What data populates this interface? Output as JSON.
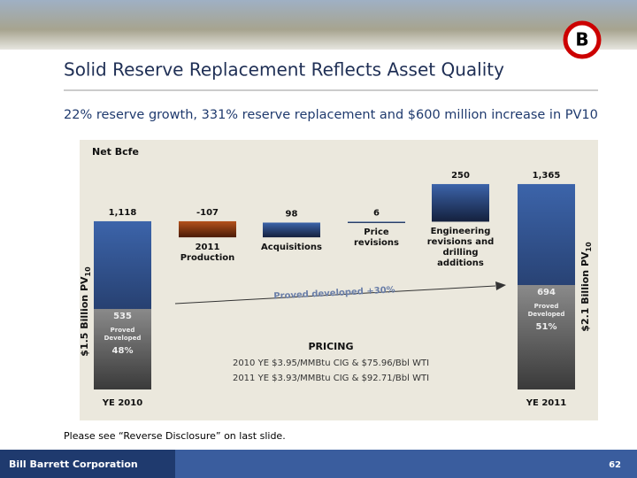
{
  "header": {
    "title": "Solid Reserve Replacement Reflects Asset Quality",
    "subtitle": "22% reserve growth, 331% reserve replacement and $600 million increase in PV10",
    "logo": "B"
  },
  "chart_data": {
    "type": "waterfall",
    "y_label": "Net Bcfe",
    "categories": [
      "YE 2010",
      "2011 Production",
      "Acquisitions",
      "Price revisions",
      "Engineering revisions and drilling additions",
      "YE 2011"
    ],
    "values": [
      1118,
      -107,
      98,
      6,
      250,
      1365
    ],
    "value_labels": [
      "1,118",
      "-107",
      "98",
      "6",
      "250",
      "1,365"
    ],
    "proved_developed": {
      "name": "Proved Developed",
      "values": [
        535,
        694
      ],
      "shares": [
        48,
        51
      ],
      "share_labels": [
        "48%",
        "51%"
      ]
    },
    "pv_left": {
      "text": "$1.5 Billion PV",
      "sub": "10"
    },
    "pv_right": {
      "text": "$2.1 Billion PV",
      "sub": "10"
    },
    "arrow_annotation": "Proved developed +30%",
    "pricing": {
      "title": "PRICING",
      "lines": [
        "2010 YE $3.95/MMBtu CIG & $75.96/Bbl WTI",
        "2011 YE $3.93/MMBtu CIG & $92.71/Bbl WTI"
      ]
    },
    "colors": {
      "total": "#2f5597",
      "decrease": "#8b3a12",
      "increase": "#2f5597",
      "proved": "#6e6e6e"
    }
  },
  "footnote": "Please see “Reverse Disclosure” on last slide.",
  "footer": {
    "company": "Bill Barrett Corporation",
    "page": "62"
  }
}
